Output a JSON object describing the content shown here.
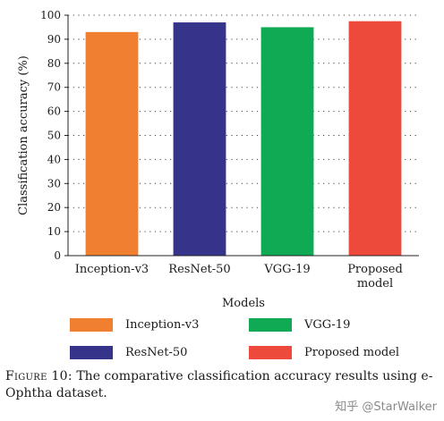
{
  "chart_data": {
    "type": "bar",
    "categories": [
      "Inception-v3",
      "ResNet-50",
      "VGG-19",
      "Proposed model"
    ],
    "category_labels": [
      [
        "Inception-v3"
      ],
      [
        "ResNet-50"
      ],
      [
        "VGG-19"
      ],
      [
        "Proposed",
        "model"
      ]
    ],
    "values": [
      93,
      97,
      95,
      97.5
    ],
    "colors": [
      "#f08030",
      "#35338a",
      "#10aa55",
      "#ee4a3c"
    ],
    "xlabel": "Models",
    "ylabel": "Classification accuracy (%)",
    "ylim": [
      0,
      100
    ],
    "yticks": [
      0,
      10,
      20,
      30,
      40,
      50,
      60,
      70,
      80,
      90,
      100
    ],
    "grid": "dotted horizontal",
    "legend": {
      "position": "bottom",
      "entries": [
        {
          "label": "Inception-v3",
          "color": "#f08030"
        },
        {
          "label": "VGG-19",
          "color": "#10aa55"
        },
        {
          "label": "ResNet-50",
          "color": "#35338a"
        },
        {
          "label": "Proposed model",
          "color": "#ee4a3c"
        }
      ]
    }
  },
  "caption": {
    "label": "Figure 10:",
    "text": "The comparative classification accuracy results using e-Ophtha dataset."
  },
  "watermark": "知乎 @StarWalker"
}
